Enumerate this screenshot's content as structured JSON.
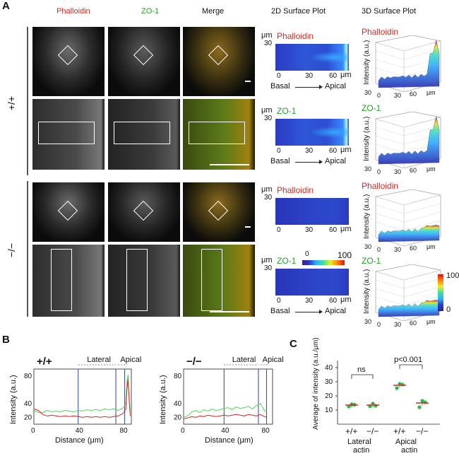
{
  "panelA": {
    "letter": "A",
    "col_headers": [
      "Phalloidin",
      "ZO-1",
      "Merge",
      "2D Surface Plot",
      "3D Surface Plot"
    ],
    "genotypes": [
      "+/+",
      "−/−"
    ],
    "surface2d": [
      {
        "label": "Phalloidin",
        "unit": "μm",
        "y_tick": "30",
        "x_ticks": [
          "0",
          "30",
          "60"
        ],
        "x_unit": "μm",
        "axis_text": [
          "Basal",
          "Apical"
        ]
      },
      {
        "label": "ZO-1",
        "unit": "μm",
        "y_tick": "30",
        "x_ticks": [
          "0",
          "30",
          "60"
        ],
        "x_unit": "μm",
        "axis_text": [
          "Basal",
          "Apical"
        ]
      },
      {
        "label": "Phalloidin",
        "unit": "μm",
        "y_tick": "30",
        "x_ticks": [
          "0",
          "30",
          "60"
        ],
        "x_unit": "μm",
        "axis_text": []
      },
      {
        "label": "ZO-1",
        "unit": "μm",
        "y_tick": "30",
        "x_ticks": [
          "0",
          "30",
          "60"
        ],
        "x_unit": "μm",
        "axis_text": [
          "Basal",
          "Apical"
        ],
        "colorbar": [
          "0",
          "100"
        ]
      }
    ],
    "surface3d": [
      {
        "label": "Phalloidin",
        "ylabel": "Intensity (a.u.)",
        "ticks": [
          "30",
          "0",
          "30",
          "60",
          "μm"
        ]
      },
      {
        "label": "ZO-1",
        "ylabel": "Intensity (a.u.)",
        "ticks": [
          "30",
          "0",
          "30",
          "60",
          "μm"
        ]
      },
      {
        "label": "Phalloidin",
        "ylabel": "Intensity (a.u.)",
        "ticks": [
          "30",
          "0",
          "30",
          "60",
          "μm"
        ]
      },
      {
        "label": "ZO-1",
        "ylabel": "Intensity (a.u.)",
        "ticks": [
          "30",
          "0",
          "30",
          "60",
          "μm"
        ],
        "colorbar": [
          "100",
          "0"
        ]
      }
    ]
  },
  "panelB": {
    "letter": "B",
    "plots": [
      {
        "genotype": "+/+",
        "ylabel": "Intensity (a.u.)",
        "xlabel": "Distance (μm)",
        "region_labels": [
          "Lateral",
          "Apical"
        ],
        "y_ticks": [
          "20",
          "40",
          "80"
        ],
        "x_ticks": [
          "0",
          "40",
          "80"
        ],
        "red": [
          [
            0,
            32
          ],
          [
            4,
            30
          ],
          [
            8,
            24
          ],
          [
            12,
            22
          ],
          [
            16,
            23
          ],
          [
            20,
            22
          ],
          [
            24,
            21
          ],
          [
            28,
            22
          ],
          [
            32,
            21
          ],
          [
            36,
            22
          ],
          [
            40,
            21
          ],
          [
            44,
            20
          ],
          [
            48,
            21
          ],
          [
            52,
            20
          ],
          [
            56,
            21
          ],
          [
            60,
            20
          ],
          [
            64,
            21
          ],
          [
            68,
            20
          ],
          [
            72,
            21
          ],
          [
            76,
            22
          ],
          [
            80,
            25
          ],
          [
            83,
            32
          ],
          [
            84,
            60
          ],
          [
            85,
            75
          ],
          [
            86,
            45
          ],
          [
            87,
            22
          ]
        ],
        "green": [
          [
            0,
            30
          ],
          [
            4,
            27
          ],
          [
            8,
            27
          ],
          [
            12,
            30
          ],
          [
            16,
            28
          ],
          [
            20,
            29
          ],
          [
            24,
            28
          ],
          [
            28,
            30
          ],
          [
            32,
            29
          ],
          [
            36,
            28
          ],
          [
            40,
            30
          ],
          [
            44,
            29
          ],
          [
            48,
            31
          ],
          [
            52,
            30
          ],
          [
            56,
            31
          ],
          [
            60,
            30
          ],
          [
            64,
            32
          ],
          [
            68,
            31
          ],
          [
            72,
            32
          ],
          [
            76,
            30
          ],
          [
            80,
            33
          ],
          [
            83,
            40
          ],
          [
            84,
            70
          ],
          [
            85,
            82
          ],
          [
            86,
            50
          ],
          [
            87,
            28
          ]
        ]
      },
      {
        "genotype": "−/−",
        "ylabel": "Intensity (a.u.)",
        "xlabel": "Distance (μm)",
        "region_labels": [
          "Lateral",
          "Apical"
        ],
        "y_ticks": [
          "20",
          "40",
          "80"
        ],
        "x_ticks": [
          "0",
          "40",
          "80"
        ],
        "red": [
          [
            0,
            18
          ],
          [
            4,
            19
          ],
          [
            8,
            21
          ],
          [
            12,
            20
          ],
          [
            16,
            22
          ],
          [
            20,
            21
          ],
          [
            24,
            23
          ],
          [
            28,
            22
          ],
          [
            32,
            21
          ],
          [
            36,
            22
          ],
          [
            40,
            23
          ],
          [
            44,
            22
          ],
          [
            48,
            23
          ],
          [
            52,
            24
          ],
          [
            56,
            23
          ],
          [
            60,
            22
          ],
          [
            64,
            24
          ],
          [
            68,
            23
          ],
          [
            72,
            22
          ],
          [
            76,
            24
          ],
          [
            80,
            21
          ],
          [
            82,
            20
          ]
        ],
        "green": [
          [
            0,
            20
          ],
          [
            4,
            22
          ],
          [
            8,
            28
          ],
          [
            12,
            30
          ],
          [
            16,
            27
          ],
          [
            20,
            31
          ],
          [
            24,
            29
          ],
          [
            28,
            32
          ],
          [
            32,
            30
          ],
          [
            36,
            31
          ],
          [
            40,
            33
          ],
          [
            44,
            34
          ],
          [
            48,
            31
          ],
          [
            52,
            35
          ],
          [
            56,
            33
          ],
          [
            60,
            34
          ],
          [
            64,
            36
          ],
          [
            68,
            32
          ],
          [
            72,
            37
          ],
          [
            76,
            40
          ],
          [
            80,
            30
          ],
          [
            82,
            28
          ]
        ]
      }
    ]
  },
  "panelC": {
    "letter": "C",
    "ylabel": "Average of intensity (a.u./μm)",
    "y_ticks": [
      "10",
      "20",
      "30",
      "40"
    ],
    "groups": [
      "+/+",
      "−/−",
      "+/+",
      "−/−"
    ],
    "group_labels": [
      "Lateral actin",
      "Apical actin"
    ],
    "sig": [
      "ns",
      "p<0.001"
    ],
    "means": [
      13.5,
      13.5,
      27.5,
      15.0
    ],
    "points": [
      [
        12.5,
        14.0,
        13.8
      ],
      [
        12.7,
        14.5,
        13.0
      ],
      [
        25.5,
        28.5,
        28.0
      ],
      [
        12.0,
        16.5,
        15.5
      ]
    ]
  },
  "colors": {
    "red": "#e2231a",
    "green": "#22a02a",
    "mean_line": "#e2231a",
    "dot": "#2ab84a"
  }
}
